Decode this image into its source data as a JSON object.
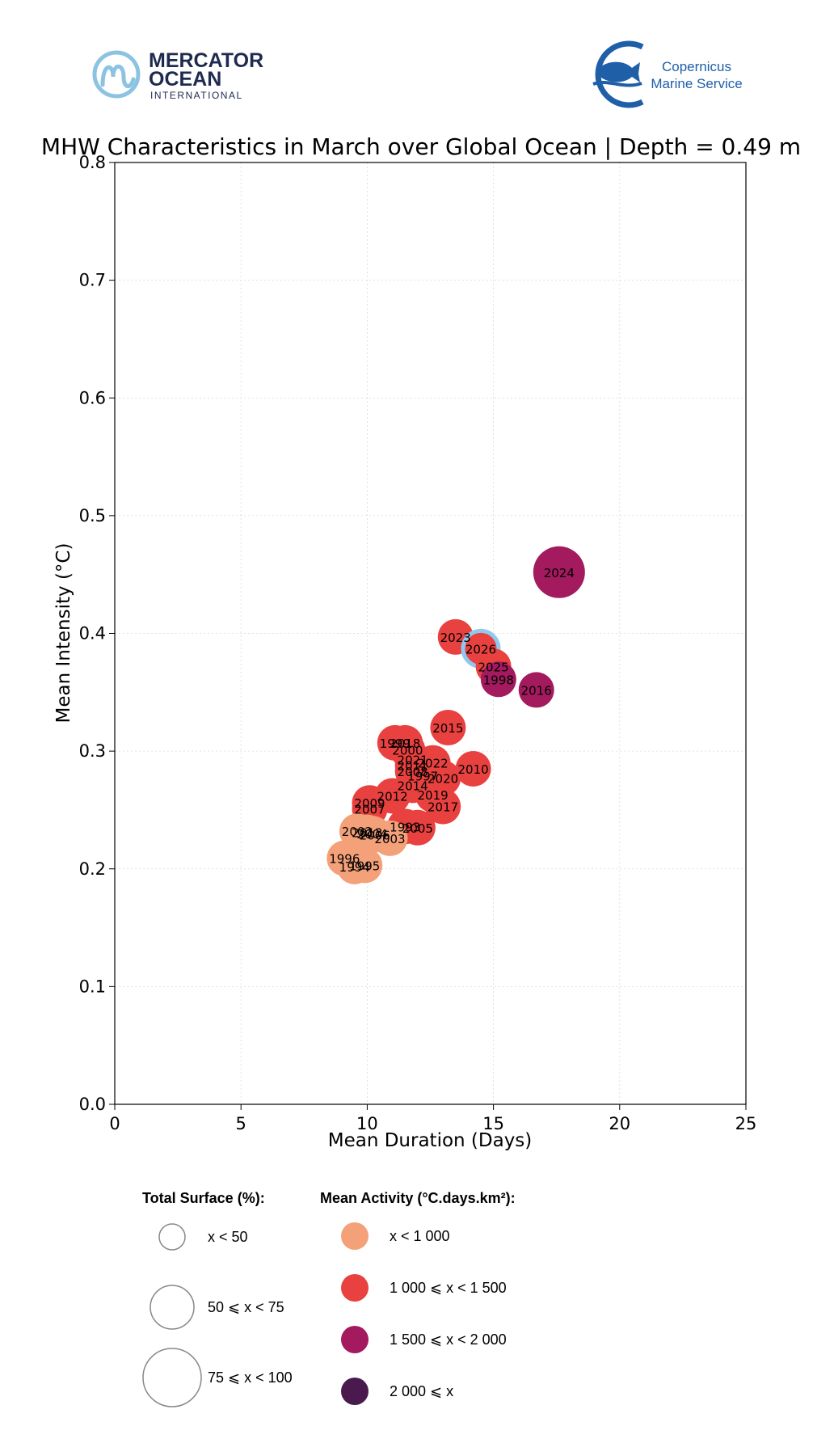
{
  "logos": {
    "mercator": {
      "line1": "MERCATOR",
      "line2": "OCEAN",
      "line3": "INTERNATIONAL",
      "color": "#1f2a4f",
      "accent": "#8cc3e2"
    },
    "copernicus": {
      "line1": "Copernicus",
      "line2": "Marine Service",
      "color": "#1f5fa8"
    }
  },
  "colors": {
    "c1": "#f4a17a",
    "c2": "#e8413f",
    "c3": "#a31a5e",
    "c4": "#4a1a4e",
    "highlight": "#8ec9f0"
  },
  "chart_data": {
    "type": "scatter",
    "title": "MHW Characteristics in March over Global Ocean | Depth = 0.49 m",
    "xlabel": "Mean Duration (Days)",
    "ylabel": "Mean Intensity (°C)",
    "xlim": [
      0,
      25
    ],
    "ylim": [
      0,
      0.8
    ],
    "xticks": [
      0,
      5,
      10,
      15,
      20,
      25
    ],
    "xtick_labels": [
      "0",
      "5",
      "10",
      "15",
      "20",
      "25"
    ],
    "yticks": [
      0.0,
      0.1,
      0.2,
      0.3,
      0.4,
      0.5,
      0.6,
      0.7,
      0.8
    ],
    "ytick_labels": [
      "0.0",
      "0.1",
      "0.2",
      "0.3",
      "0.4",
      "0.5",
      "0.6",
      "0.7",
      "0.8"
    ],
    "grid": true,
    "points": [
      {
        "label": "2024",
        "x": 17.6,
        "y": 0.452,
        "surface": 3,
        "activity": 3
      },
      {
        "label": "2023",
        "x": 13.5,
        "y": 0.397,
        "surface": 2,
        "activity": 2
      },
      {
        "label": "2026",
        "x": 14.5,
        "y": 0.387,
        "surface": 2,
        "activity": 2,
        "highlight": true
      },
      {
        "label": "2025",
        "x": 15.0,
        "y": 0.372,
        "surface": 2,
        "activity": 2
      },
      {
        "label": "1998",
        "x": 15.2,
        "y": 0.361,
        "surface": 2,
        "activity": 3
      },
      {
        "label": "2016",
        "x": 16.7,
        "y": 0.352,
        "surface": 2,
        "activity": 3
      },
      {
        "label": "2015",
        "x": 13.2,
        "y": 0.32,
        "surface": 2,
        "activity": 2
      },
      {
        "label": "1999",
        "x": 11.1,
        "y": 0.307,
        "surface": 2,
        "activity": 2
      },
      {
        "label": "2018",
        "x": 11.5,
        "y": 0.307,
        "surface": 2,
        "activity": 2
      },
      {
        "label": "2000",
        "x": 11.6,
        "y": 0.301,
        "surface": 2,
        "activity": 2
      },
      {
        "label": "2021",
        "x": 11.8,
        "y": 0.293,
        "surface": 2,
        "activity": 2
      },
      {
        "label": "2022",
        "x": 12.6,
        "y": 0.29,
        "surface": 2,
        "activity": 2
      },
      {
        "label": "2011",
        "x": 11.8,
        "y": 0.288,
        "surface": 2,
        "activity": 2
      },
      {
        "label": "2010",
        "x": 14.2,
        "y": 0.285,
        "surface": 2,
        "activity": 2
      },
      {
        "label": "2008",
        "x": 11.8,
        "y": 0.283,
        "surface": 2,
        "activity": 2
      },
      {
        "label": "1997",
        "x": 12.2,
        "y": 0.279,
        "surface": 2,
        "activity": 2
      },
      {
        "label": "2020",
        "x": 13.0,
        "y": 0.277,
        "surface": 2,
        "activity": 2
      },
      {
        "label": "2014",
        "x": 11.8,
        "y": 0.271,
        "surface": 2,
        "activity": 2
      },
      {
        "label": "2012",
        "x": 11.0,
        "y": 0.262,
        "surface": 2,
        "activity": 2
      },
      {
        "label": "2019",
        "x": 12.6,
        "y": 0.263,
        "surface": 2,
        "activity": 2
      },
      {
        "label": "2009",
        "x": 10.1,
        "y": 0.256,
        "surface": 2,
        "activity": 2
      },
      {
        "label": "2017",
        "x": 13.0,
        "y": 0.253,
        "surface": 2,
        "activity": 2
      },
      {
        "label": "2007",
        "x": 10.1,
        "y": 0.251,
        "surface": 2,
        "activity": 2
      },
      {
        "label": "1993",
        "x": 11.5,
        "y": 0.236,
        "surface": 2,
        "activity": 2
      },
      {
        "label": "2005",
        "x": 12.0,
        "y": 0.235,
        "surface": 2,
        "activity": 2
      },
      {
        "label": "2002",
        "x": 9.6,
        "y": 0.232,
        "surface": 2,
        "activity": 1
      },
      {
        "label": "2013",
        "x": 10.0,
        "y": 0.231,
        "surface": 2,
        "activity": 1
      },
      {
        "label": "2004",
        "x": 10.2,
        "y": 0.23,
        "surface": 2,
        "activity": 1
      },
      {
        "label": "2006",
        "x": 10.3,
        "y": 0.229,
        "surface": 2,
        "activity": 1
      },
      {
        "label": "2003",
        "x": 10.9,
        "y": 0.226,
        "surface": 2,
        "activity": 1
      },
      {
        "label": "1996",
        "x": 9.1,
        "y": 0.209,
        "surface": 2,
        "activity": 1
      },
      {
        "label": "1994",
        "x": 9.5,
        "y": 0.202,
        "surface": 2,
        "activity": 1
      },
      {
        "label": "1995",
        "x": 9.9,
        "y": 0.203,
        "surface": 2,
        "activity": 1
      }
    ],
    "legend_size": {
      "title": "Total Surface (%):",
      "items": [
        {
          "label": "x < 50",
          "level": 1
        },
        {
          "label": "50 ⩽ x < 75",
          "level": 2
        },
        {
          "label": "75 ⩽ x < 100",
          "level": 3
        }
      ]
    },
    "legend_color": {
      "title": "Mean Activity (°C.days.km²):",
      "items": [
        {
          "label": "x < 1 000",
          "level": 1
        },
        {
          "label": "1 000 ⩽ x < 1 500",
          "level": 2
        },
        {
          "label": "1 500 ⩽ x < 2 000",
          "level": 3
        },
        {
          "label": "2 000 ⩽ x",
          "level": 4
        }
      ]
    }
  }
}
